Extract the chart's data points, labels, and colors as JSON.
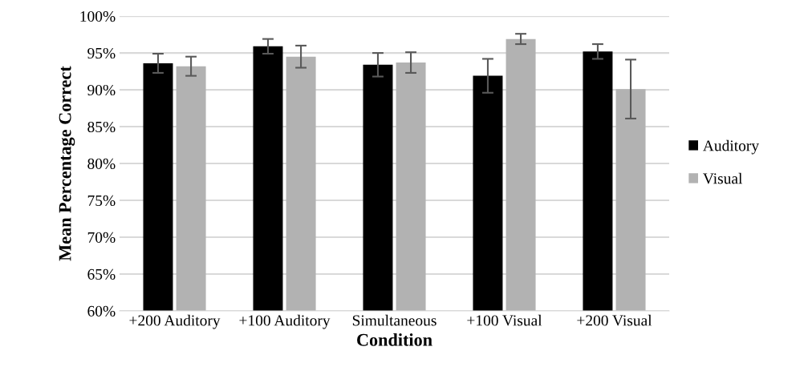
{
  "chart_data": {
    "type": "bar",
    "xlabel": "Condition",
    "ylabel": "Mean Percentage Correct",
    "categories": [
      "+200 Auditory",
      "+100 Auditory",
      "Simultaneous",
      "+100 Visual",
      "+200 Visual"
    ],
    "series": [
      {
        "name": "Auditory",
        "color": "#000000",
        "values": [
          93.6,
          95.9,
          93.4,
          91.9,
          95.2
        ],
        "errors": [
          1.3,
          1.0,
          1.6,
          2.3,
          1.0
        ]
      },
      {
        "name": "Visual",
        "color": "#b2b2b2",
        "values": [
          93.2,
          94.5,
          93.7,
          96.9,
          90.1
        ],
        "errors": [
          1.3,
          1.5,
          1.4,
          0.7,
          4.0
        ]
      }
    ],
    "ylim": [
      60,
      100
    ],
    "yticks": [
      {
        "value": 60,
        "label": "60%"
      },
      {
        "value": 65,
        "label": "65%"
      },
      {
        "value": 70,
        "label": "70%"
      },
      {
        "value": 75,
        "label": "75%"
      },
      {
        "value": 80,
        "label": "80%"
      },
      {
        "value": 85,
        "label": "85%"
      },
      {
        "value": 90,
        "label": "90%"
      },
      {
        "value": 95,
        "label": "95%"
      },
      {
        "value": 100,
        "label": "100%"
      }
    ],
    "grid": "y",
    "legend": "right"
  }
}
